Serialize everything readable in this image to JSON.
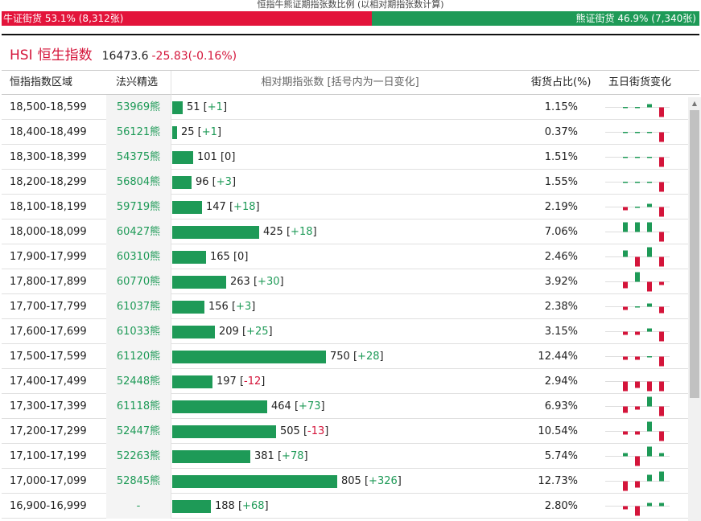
{
  "caption": "恒指牛熊证期指张数比例 (以相对期指张数计算)",
  "ratio_bar": {
    "bull_label": "牛证街货 53.1% (8,312张)",
    "bull_pct": 53.1,
    "bear_label": "熊证街货 46.9% (7,340张)",
    "bear_pct": 46.9,
    "bull_color": "#e3143b",
    "bear_color": "#1e9a57"
  },
  "index": {
    "code": "HSI",
    "name": "恒生指数",
    "value": "16473.6",
    "change": "-25.83(-0.16%)"
  },
  "table": {
    "headers": {
      "range": "恒指指数区域",
      "warrant": "法兴精选",
      "count": "相对期指张数 [括号内为一日变化]",
      "ratio": "街货占比(%)",
      "trend": "五日街货变化"
    },
    "bar_max": 805,
    "rows": [
      {
        "range": "18,500-18,599",
        "warrant": "53969熊",
        "count": 51,
        "count_text": "51",
        "delta": "+1",
        "ratio": "1.15%",
        "trend": [
          0,
          0,
          1,
          -3,
          0
        ]
      },
      {
        "range": "18,400-18,499",
        "warrant": "56121熊",
        "count": 25,
        "count_text": "25",
        "delta": "+1",
        "ratio": "0.37%",
        "trend": [
          0,
          0,
          0,
          -3,
          0
        ]
      },
      {
        "range": "18,300-18,399",
        "warrant": "54375熊",
        "count": 101,
        "count_text": "101",
        "delta": "0",
        "ratio": "1.51%",
        "trend": [
          0,
          0,
          0,
          -3,
          0
        ]
      },
      {
        "range": "18,200-18,299",
        "warrant": "56804熊",
        "count": 96,
        "count_text": "96",
        "delta": "+3",
        "ratio": "1.55%",
        "trend": [
          0,
          0,
          0,
          -3,
          0
        ]
      },
      {
        "range": "18,100-18,199",
        "warrant": "59719熊",
        "count": 147,
        "count_text": "147",
        "delta": "+18",
        "ratio": "2.19%",
        "trend": [
          -1,
          0,
          1,
          -3,
          0
        ]
      },
      {
        "range": "18,000-18,099",
        "warrant": "60427熊",
        "count": 425,
        "count_text": "425",
        "delta": "+18",
        "ratio": "7.06%",
        "trend": [
          3,
          3,
          3,
          -3,
          2
        ]
      },
      {
        "range": "17,900-17,999",
        "warrant": "60310熊",
        "count": 165,
        "count_text": "165",
        "delta": "0",
        "ratio": "2.46%",
        "trend": [
          2,
          -3,
          3,
          -3,
          0
        ]
      },
      {
        "range": "17,800-17,899",
        "warrant": "60770熊",
        "count": 263,
        "count_text": "263",
        "delta": "+30",
        "ratio": "3.92%",
        "trend": [
          -2,
          3,
          -3,
          -1,
          3
        ]
      },
      {
        "range": "17,700-17,799",
        "warrant": "61037熊",
        "count": 156,
        "count_text": "156",
        "delta": "+3",
        "ratio": "2.38%",
        "trend": [
          -1,
          0,
          1,
          -2,
          1
        ]
      },
      {
        "range": "17,600-17,699",
        "warrant": "61033熊",
        "count": 209,
        "count_text": "209",
        "delta": "+25",
        "ratio": "3.15%",
        "trend": [
          -1,
          -1,
          1,
          -3,
          1
        ]
      },
      {
        "range": "17,500-17,599",
        "warrant": "61120熊",
        "count": 750,
        "count_text": "750",
        "delta": "+28",
        "ratio": "12.44%",
        "trend": [
          -1,
          -1,
          0,
          -3,
          1
        ]
      },
      {
        "range": "17,400-17,499",
        "warrant": "52448熊",
        "count": 197,
        "count_text": "197",
        "delta": "-12",
        "ratio": "2.94%",
        "trend": [
          -3,
          -2,
          -3,
          -3,
          -1
        ]
      },
      {
        "range": "17,300-17,399",
        "warrant": "61118熊",
        "count": 464,
        "count_text": "464",
        "delta": "+73",
        "ratio": "6.93%",
        "trend": [
          -2,
          -1,
          3,
          -3,
          2
        ]
      },
      {
        "range": "17,200-17,299",
        "warrant": "52447熊",
        "count": 505,
        "count_text": "505",
        "delta": "-13",
        "ratio": "10.54%",
        "trend": [
          -1,
          -1,
          3,
          -3,
          -1
        ]
      },
      {
        "range": "17,100-17,199",
        "warrant": "52263熊",
        "count": 381,
        "count_text": "381",
        "delta": "+78",
        "ratio": "5.74%",
        "trend": [
          1,
          -3,
          3,
          1,
          3
        ]
      },
      {
        "range": "17,000-17,099",
        "warrant": "52845熊",
        "count": 805,
        "count_text": "805",
        "delta": "+326",
        "ratio": "12.73%",
        "trend": [
          -3,
          -2,
          2,
          3,
          3
        ]
      },
      {
        "range": "16,900-16,999",
        "warrant": "-",
        "count": 188,
        "count_text": "188",
        "delta": "+68",
        "ratio": "2.80%",
        "trend": [
          -1,
          -3,
          1,
          1,
          1
        ]
      }
    ]
  },
  "colors": {
    "up": "#1e9a57",
    "down": "#d4143a"
  }
}
